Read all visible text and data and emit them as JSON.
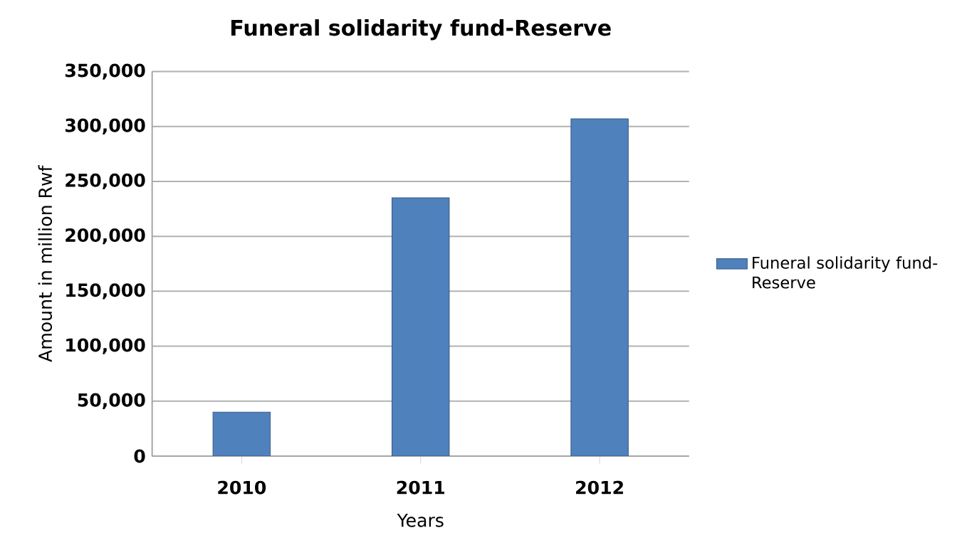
{
  "chart_data": {
    "type": "bar",
    "title": "Funeral solidarity fund-Reserve",
    "xlabel": "Years",
    "ylabel": "Amount in million Rwf",
    "categories": [
      "2010",
      "2011",
      "2012"
    ],
    "series": [
      {
        "name": "Funeral solidarity fund-Reserve",
        "color": "#4f81bd",
        "values": [
          40000,
          235000,
          307000
        ]
      }
    ],
    "ylim": [
      0,
      350000
    ],
    "yticks": [
      {
        "value": 0,
        "label": "0"
      },
      {
        "value": 50000,
        "label": "50,000"
      },
      {
        "value": 100000,
        "label": "100,000"
      },
      {
        "value": 150000,
        "label": "150,000"
      },
      {
        "value": 200000,
        "label": "200,000"
      },
      {
        "value": 250000,
        "label": "250,000"
      },
      {
        "value": 300000,
        "label": "300,000"
      },
      {
        "value": 350000,
        "label": "350,000"
      }
    ],
    "grid": "y",
    "legend": "right"
  }
}
